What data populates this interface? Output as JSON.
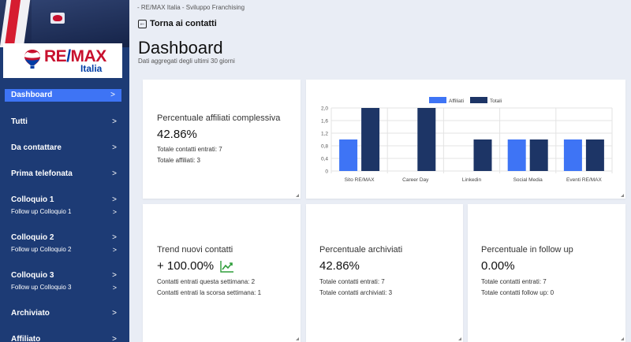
{
  "sidebar": {
    "logo": {
      "brand": "RE/MAX",
      "brand_left": "RE",
      "brand_slash": "/",
      "brand_right": "MAX",
      "country": "Italia"
    },
    "items": [
      {
        "label": "Dashboard",
        "active": true,
        "sub": null
      },
      {
        "label": "Tutti",
        "sub": null
      },
      {
        "label": "Da contattare",
        "sub": null
      },
      {
        "label": "Prima telefonata",
        "sub": null
      },
      {
        "label": "Colloquio 1",
        "sub": "Follow up Colloquio 1"
      },
      {
        "label": "Colloquio 2",
        "sub": "Follow up Colloquio 2"
      },
      {
        "label": "Colloquio 3",
        "sub": "Follow up Colloquio 3"
      },
      {
        "label": "Archiviato",
        "sub": null
      },
      {
        "label": "Affiliato",
        "sub": null
      }
    ],
    "chevron": ">"
  },
  "header": {
    "breadcrumb": "- RE/MAX Italia - Sviluppo Franchising",
    "back_label": "Torna ai contatti",
    "title": "Dashboard",
    "subtitle": "Dati aggregati degli ultimi 30 giorni"
  },
  "cards": {
    "affiliati": {
      "title": "Percentuale affiliati complessiva",
      "value": "42.86%",
      "line1": "Totale contatti entrati: 7",
      "line2": "Totale affiliati: 3"
    },
    "trend": {
      "title": "Trend nuovi contatti",
      "value": "+ 100.00%",
      "line1": "Contatti entrati questa settimana: 2",
      "line2": "Contatti entrati la scorsa settimana: 1",
      "icon": "trending-up-icon",
      "icon_color": "#2e9d3a"
    },
    "archiviati": {
      "title": "Percentuale archiviati",
      "value": "42.86%",
      "line1": "Totale contatti entrati: 7",
      "line2": "Totale contatti archiviati: 3"
    },
    "followup": {
      "title": "Percentuale in follow up",
      "value": "0.00%",
      "line1": "Totale contatti entrati: 7",
      "line2": "Totale contatti follow up: 0"
    }
  },
  "chart_data": {
    "type": "bar",
    "categories": [
      "Sito RE/MAX",
      "Career Day",
      "Linkedin",
      "Social Media",
      "Eventi RE/MAX"
    ],
    "series": [
      {
        "name": "Affiliati",
        "values": [
          1,
          0,
          0,
          1,
          1
        ],
        "color": "#3e74f5"
      },
      {
        "name": "Totali",
        "values": [
          2,
          2,
          1,
          1,
          1
        ],
        "color": "#1d3566"
      }
    ],
    "ylim": [
      0,
      2.0
    ],
    "yticks": [
      "0",
      "0,4",
      "0,8",
      "1,2",
      "1,6",
      "2,0"
    ],
    "grid": true,
    "legend": "top-center"
  },
  "colors": {
    "sidebar": "#1d3b75",
    "accent": "#3e74f5",
    "brand_red": "#c8102e",
    "brand_blue": "#003da5"
  }
}
